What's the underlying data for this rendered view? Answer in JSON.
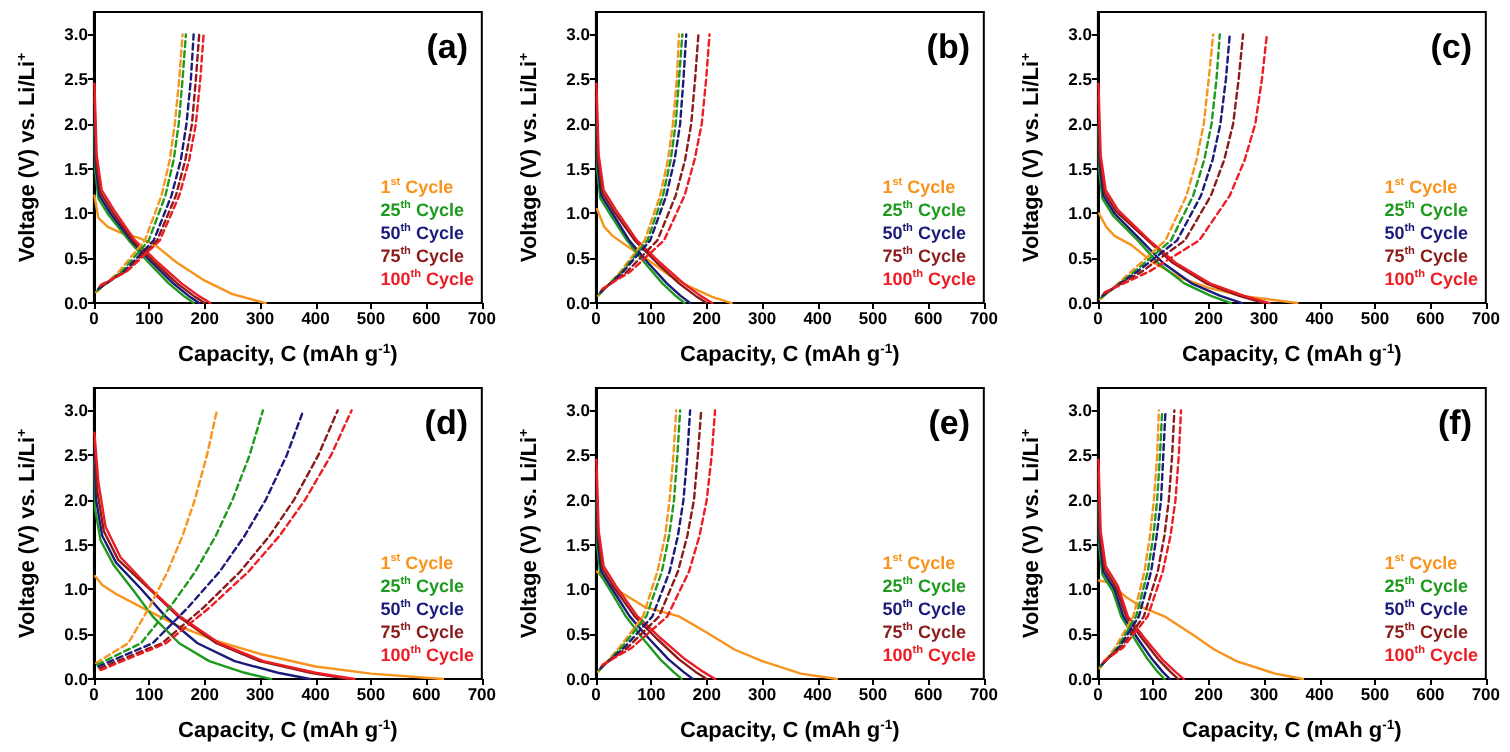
{
  "chart_data": [
    {
      "type": "line",
      "title": "(a)",
      "xlabel": "Capacity, C (mAh g$^{-1}$)",
      "ylabel": "Voltage (V) vs. Li/Li$^{+}$",
      "xlim": [
        0,
        700
      ],
      "xticks": [
        0,
        100,
        200,
        300,
        400,
        500,
        600,
        700
      ],
      "ylim": [
        0,
        3.25
      ],
      "yticks": [
        {
          "value": 0,
          "label": "0.0"
        },
        0.5,
        {
          "value": 1,
          "label": "1.0"
        },
        1.5,
        {
          "value": 2,
          "label": "2.0"
        },
        2.5,
        {
          "value": 3,
          "label": "3.0"
        }
      ],
      "legend": "bottom right",
      "marker": "none",
      "series": [
        {
          "name": "1$^{st}$ Cycle",
          "color": "#f7941d",
          "line_style": "solid",
          "x": [
            1,
            8,
            25,
            50,
            80,
            110,
            150,
            200,
            250,
            310
          ],
          "values": [
            1.2,
            0.95,
            0.85,
            0.78,
            0.73,
            0.65,
            0.45,
            0.25,
            0.1,
            0
          ]
        },
        {
          "name": "25$^{th}$ Cycle",
          "color": "#1e9a1e",
          "line_style": "solid",
          "x": [
            1,
            2,
            8,
            27,
            63,
            99,
            135,
            162,
            180
          ],
          "values": [
            2.0,
            1.5,
            1.17,
            0.98,
            0.7,
            0.45,
            0.22,
            0.08,
            0
          ]
        },
        {
          "name": "50$^{th}$ Cycle",
          "color": "#1b1b7a",
          "line_style": "solid",
          "x": [
            1,
            3,
            10,
            30,
            67,
            105,
            143,
            171,
            190
          ],
          "values": [
            2.15,
            1.55,
            1.2,
            1.0,
            0.7,
            0.45,
            0.22,
            0.08,
            0
          ]
        },
        {
          "name": "75$^{th}$ Cycle",
          "color": "#8b1c1c",
          "line_style": "solid",
          "x": [
            1,
            4,
            12,
            33,
            70,
            110,
            150,
            180,
            200
          ],
          "values": [
            2.3,
            1.6,
            1.23,
            1.02,
            0.7,
            0.45,
            0.22,
            0.08,
            0
          ]
        },
        {
          "name": "100$^{th}$ Cycle",
          "color": "#ee1c24",
          "line_style": "solid",
          "x": [
            1,
            5,
            14,
            36,
            74,
            116,
            158,
            189,
            210
          ],
          "values": [
            2.45,
            1.65,
            1.26,
            1.04,
            0.7,
            0.45,
            0.22,
            0.08,
            0
          ]
        },
        {
          "color": "#f7941d",
          "line_style": "dashed",
          "x": [
            4,
            45,
            92,
            122,
            137,
            146,
            154,
            160
          ],
          "values": [
            0.12,
            0.35,
            0.7,
            1.2,
            1.6,
            2.0,
            2.5,
            3.0
          ]
        },
        {
          "color": "#1e9a1e",
          "line_style": "dashed",
          "x": [
            6,
            50,
            99,
            129,
            144,
            153,
            160,
            166
          ],
          "values": [
            0.14,
            0.35,
            0.7,
            1.2,
            1.6,
            2.0,
            2.5,
            3.0
          ]
        },
        {
          "color": "#1b1b7a",
          "line_style": "dashed",
          "x": [
            8,
            54,
            108,
            140,
            157,
            167,
            175,
            180
          ],
          "values": [
            0.16,
            0.35,
            0.7,
            1.2,
            1.6,
            2.0,
            2.5,
            3.0
          ]
        },
        {
          "color": "#8b1c1c",
          "line_style": "dashed",
          "x": [
            10,
            57,
            114,
            148,
            165,
            177,
            184,
            190
          ],
          "values": [
            0.18,
            0.35,
            0.7,
            1.2,
            1.6,
            2.0,
            2.5,
            3.0
          ]
        },
        {
          "color": "#ee1c24",
          "line_style": "dashed",
          "x": [
            12,
            59,
            119,
            154,
            172,
            184,
            192,
            198
          ],
          "values": [
            0.2,
            0.35,
            0.7,
            1.2,
            1.6,
            2.0,
            2.5,
            3.0
          ]
        }
      ]
    },
    {
      "type": "line",
      "title": "(b)",
      "xlabel": "Capacity, C (mAh g$^{-1}$)",
      "ylabel": "Voltage (V) vs. Li/Li$^{+}$",
      "xlim": [
        0,
        700
      ],
      "xticks": [
        0,
        100,
        200,
        300,
        400,
        500,
        600,
        700
      ],
      "ylim": [
        0,
        3.25
      ],
      "yticks": [
        {
          "value": 0,
          "label": "0.0"
        },
        0.5,
        {
          "value": 1,
          "label": "1.0"
        },
        1.5,
        {
          "value": 2,
          "label": "2.0"
        },
        2.5,
        {
          "value": 3,
          "label": "3.0"
        }
      ],
      "legend": "bottom right",
      "marker": "none",
      "series": [
        {
          "name": "1$^{st}$ Cycle",
          "color": "#f7941d",
          "line_style": "solid",
          "x": [
            2,
            15,
            30,
            60,
            90,
            130,
            170,
            210,
            245
          ],
          "values": [
            1.05,
            0.85,
            0.75,
            0.62,
            0.5,
            0.32,
            0.18,
            0.07,
            0
          ]
        },
        {
          "name": "25$^{th}$ Cycle",
          "color": "#1e9a1e",
          "line_style": "solid",
          "x": [
            1,
            2,
            8,
            27,
            56,
            88,
            120,
            144,
            160
          ],
          "values": [
            2.0,
            1.5,
            1.17,
            0.98,
            0.7,
            0.45,
            0.22,
            0.08,
            0
          ]
        },
        {
          "name": "50$^{th}$ Cycle",
          "color": "#1b1b7a",
          "line_style": "solid",
          "x": [
            1,
            3,
            10,
            30,
            60,
            94,
            128,
            153,
            170
          ],
          "values": [
            2.15,
            1.55,
            1.2,
            1.0,
            0.7,
            0.45,
            0.22,
            0.08,
            0
          ]
        },
        {
          "name": "75$^{th}$ Cycle",
          "color": "#8b1c1c",
          "line_style": "solid",
          "x": [
            1,
            4,
            12,
            33,
            70,
            110,
            150,
            180,
            200
          ],
          "values": [
            2.3,
            1.6,
            1.23,
            1.02,
            0.7,
            0.45,
            0.22,
            0.08,
            0
          ]
        },
        {
          "name": "100$^{th}$ Cycle",
          "color": "#ee1c24",
          "line_style": "solid",
          "x": [
            1,
            5,
            14,
            36,
            74,
            116,
            158,
            189,
            210
          ],
          "values": [
            2.45,
            1.65,
            1.26,
            1.04,
            0.7,
            0.45,
            0.22,
            0.08,
            0
          ]
        },
        {
          "color": "#f7941d",
          "line_style": "dashed",
          "x": [
            4,
            44,
            88,
            116,
            130,
            139,
            146,
            150
          ],
          "values": [
            0.08,
            0.35,
            0.7,
            1.2,
            1.6,
            2.0,
            2.5,
            3.0
          ]
        },
        {
          "color": "#1e9a1e",
          "line_style": "dashed",
          "x": [
            6,
            47,
            93,
            121,
            135,
            144,
            150,
            156
          ],
          "values": [
            0.1,
            0.35,
            0.7,
            1.2,
            1.6,
            2.0,
            2.5,
            3.0
          ]
        },
        {
          "color": "#1b1b7a",
          "line_style": "dashed",
          "x": [
            8,
            49,
            98,
            127,
            142,
            152,
            158,
            163
          ],
          "values": [
            0.12,
            0.35,
            0.7,
            1.2,
            1.6,
            2.0,
            2.5,
            3.0
          ]
        },
        {
          "color": "#8b1c1c",
          "line_style": "dashed",
          "x": [
            10,
            56,
            111,
            144,
            161,
            172,
            179,
            185
          ],
          "values": [
            0.14,
            0.35,
            0.7,
            1.2,
            1.6,
            2.0,
            2.5,
            3.0
          ]
        },
        {
          "color": "#ee1c24",
          "line_style": "dashed",
          "x": [
            12,
            62,
            123,
            160,
            178,
            191,
            199,
            205
          ],
          "values": [
            0.16,
            0.35,
            0.7,
            1.2,
            1.6,
            2.0,
            2.5,
            3.0
          ]
        }
      ]
    },
    {
      "type": "line",
      "title": "(c)",
      "xlabel": "Capacity, C (mAh g$^{-1}$)",
      "ylabel": "Voltage (V) vs. Li/Li$^{+}$",
      "xlim": [
        0,
        700
      ],
      "xticks": [
        0,
        100,
        200,
        300,
        400,
        500,
        600,
        700
      ],
      "ylim": [
        0,
        3.25
      ],
      "yticks": [
        {
          "value": 0,
          "label": "0.0"
        },
        0.5,
        {
          "value": 1,
          "label": "1.0"
        },
        1.5,
        {
          "value": 2,
          "label": "2.0"
        },
        2.5,
        {
          "value": 3,
          "label": "3.0"
        }
      ],
      "legend": "bottom right",
      "marker": "none",
      "series": [
        {
          "name": "1$^{st}$ Cycle",
          "color": "#f7941d",
          "line_style": "solid",
          "x": [
            2,
            15,
            30,
            60,
            100,
            150,
            200,
            260,
            360
          ],
          "values": [
            1.0,
            0.85,
            0.75,
            0.65,
            0.45,
            0.28,
            0.17,
            0.08,
            0
          ]
        },
        {
          "name": "25$^{th}$ Cycle",
          "color": "#1e9a1e",
          "line_style": "solid",
          "x": [
            1,
            2,
            8,
            27,
            72,
            108,
            156,
            204,
            240
          ],
          "values": [
            2.0,
            1.5,
            1.17,
            0.98,
            0.7,
            0.45,
            0.22,
            0.08,
            0
          ]
        },
        {
          "name": "50$^{th}$ Cycle",
          "color": "#1b1b7a",
          "line_style": "solid",
          "x": [
            1,
            3,
            10,
            30,
            78,
            117,
            169,
            221,
            260
          ],
          "values": [
            2.15,
            1.55,
            1.2,
            1.0,
            0.7,
            0.45,
            0.22,
            0.08,
            0
          ]
        },
        {
          "name": "75$^{th}$ Cycle",
          "color": "#8b1c1c",
          "line_style": "solid",
          "x": [
            1,
            4,
            12,
            33,
            90,
            135,
            195,
            255,
            300
          ],
          "values": [
            2.3,
            1.6,
            1.23,
            1.02,
            0.7,
            0.45,
            0.22,
            0.08,
            0
          ]
        },
        {
          "name": "100$^{th}$ Cycle",
          "color": "#ee1c24",
          "line_style": "solid",
          "x": [
            1,
            5,
            14,
            36,
            93,
            140,
            202,
            264,
            310
          ],
          "values": [
            2.45,
            1.65,
            1.26,
            1.04,
            0.7,
            0.45,
            0.22,
            0.08,
            0
          ]
        },
        {
          "color": "#f7941d",
          "line_style": "dashed",
          "x": [
            4,
            60,
            122,
            160,
            178,
            191,
            200,
            208
          ],
          "values": [
            0.04,
            0.35,
            0.7,
            1.2,
            1.6,
            2.0,
            2.5,
            3.0
          ]
        },
        {
          "color": "#1e9a1e",
          "line_style": "dashed",
          "x": [
            6,
            66,
            132,
            172,
            192,
            205,
            214,
            220
          ],
          "values": [
            0.06,
            0.35,
            0.7,
            1.2,
            1.6,
            2.0,
            2.5,
            3.0
          ]
        },
        {
          "color": "#1b1b7a",
          "line_style": "dashed",
          "x": [
            8,
            71,
            143,
            186,
            207,
            221,
            231,
            238
          ],
          "values": [
            0.08,
            0.35,
            0.7,
            1.2,
            1.6,
            2.0,
            2.5,
            3.0
          ]
        },
        {
          "color": "#8b1c1c",
          "line_style": "dashed",
          "x": [
            10,
            79,
            157,
            204,
            228,
            244,
            254,
            262
          ],
          "values": [
            0.1,
            0.35,
            0.7,
            1.2,
            1.6,
            2.0,
            2.5,
            3.0
          ]
        },
        {
          "color": "#ee1c24",
          "line_style": "dashed",
          "x": [
            12,
            92,
            183,
            238,
            265,
            284,
            296,
            305
          ],
          "values": [
            0.12,
            0.35,
            0.7,
            1.2,
            1.6,
            2.0,
            2.5,
            3.0
          ]
        }
      ]
    },
    {
      "type": "line",
      "title": "(d)",
      "xlabel": "Capacity, C (mAh g$^{-1}$)",
      "ylabel": "Voltage (V) vs. Li/Li$^{+}$",
      "xlim": [
        0,
        700
      ],
      "xticks": [
        0,
        100,
        200,
        300,
        400,
        500,
        600,
        700
      ],
      "ylim": [
        0,
        3.25
      ],
      "yticks": [
        {
          "value": 0,
          "label": "0.0"
        },
        0.5,
        {
          "value": 1,
          "label": "1.0"
        },
        1.5,
        {
          "value": 2,
          "label": "2.0"
        },
        2.5,
        {
          "value": 3,
          "label": "3.0"
        }
      ],
      "legend": "bottom right",
      "marker": "none",
      "series": [
        {
          "name": "1$^{st}$ Cycle",
          "color": "#f7941d",
          "line_style": "solid",
          "x": [
            2,
            15,
            40,
            80,
            150,
            220,
            300,
            400,
            500,
            630
          ],
          "values": [
            1.15,
            1.05,
            0.95,
            0.82,
            0.6,
            0.43,
            0.28,
            0.14,
            0.06,
            0
          ]
        },
        {
          "name": "25$^{th}$ Cycle",
          "color": "#1e9a1e",
          "line_style": "solid",
          "x": [
            1,
            2,
            12,
            36,
            70,
            106,
            154,
            208,
            272,
            320
          ],
          "values": [
            2.45,
            1.9,
            1.55,
            1.27,
            1.0,
            0.7,
            0.4,
            0.2,
            0.07,
            0
          ]
        },
        {
          "name": "50$^{th}$ Cycle",
          "color": "#1b1b7a",
          "line_style": "solid",
          "x": [
            1,
            4,
            15,
            40,
            86,
            129,
            187,
            254,
            332,
            390
          ],
          "values": [
            2.55,
            2.0,
            1.6,
            1.3,
            1.0,
            0.7,
            0.4,
            0.2,
            0.07,
            0
          ]
        },
        {
          "name": "75$^{th}$ Cycle",
          "color": "#8b1c1c",
          "line_style": "solid",
          "x": [
            1,
            6,
            18,
            44,
            101,
            152,
            221,
            299,
            391,
            460
          ],
          "values": [
            2.65,
            2.1,
            1.65,
            1.33,
            1.0,
            0.7,
            0.4,
            0.2,
            0.07,
            0
          ]
        },
        {
          "name": "100$^{th}$ Cycle",
          "color": "#ee1c24",
          "line_style": "solid",
          "x": [
            1,
            8,
            21,
            48,
            103,
            155,
            226,
            306,
            400,
            470
          ],
          "values": [
            2.75,
            2.2,
            1.7,
            1.36,
            1.0,
            0.7,
            0.4,
            0.2,
            0.07,
            0
          ]
        },
        {
          "color": "#f7941d",
          "line_style": "dashed",
          "x": [
            4,
            62,
            100,
            133,
            160,
            182,
            204,
            222
          ],
          "values": [
            0.18,
            0.4,
            0.8,
            1.2,
            1.6,
            2.0,
            2.5,
            3.0
          ]
        },
        {
          "color": "#1e9a1e",
          "line_style": "dashed",
          "x": [
            6,
            85,
            137,
            183,
            220,
            250,
            281,
            305
          ],
          "values": [
            0.16,
            0.4,
            0.8,
            1.2,
            1.6,
            2.0,
            2.5,
            3.0
          ]
        },
        {
          "color": "#1b1b7a",
          "line_style": "dashed",
          "x": [
            8,
            106,
            170,
            227,
            272,
            310,
            348,
            378
          ],
          "values": [
            0.14,
            0.4,
            0.8,
            1.2,
            1.6,
            2.0,
            2.5,
            3.0
          ]
        },
        {
          "color": "#8b1c1c",
          "line_style": "dashed",
          "x": [
            10,
            123,
            198,
            264,
            317,
            361,
            405,
            440
          ],
          "values": [
            0.12,
            0.4,
            0.8,
            1.2,
            1.6,
            2.0,
            2.5,
            3.0
          ]
        },
        {
          "color": "#ee1c24",
          "line_style": "dashed",
          "x": [
            12,
            130,
            209,
            279,
            335,
            381,
            428,
            465
          ],
          "values": [
            0.1,
            0.4,
            0.8,
            1.2,
            1.6,
            2.0,
            2.5,
            3.0
          ]
        }
      ]
    },
    {
      "type": "line",
      "title": "(e)",
      "xlabel": "Capacity, C (mAh g$^{-1}$)",
      "ylabel": "Voltage (V) vs. Li/Li$^{+}$",
      "xlim": [
        0,
        700
      ],
      "xticks": [
        0,
        100,
        200,
        300,
        400,
        500,
        600,
        700
      ],
      "ylim": [
        0,
        3.25
      ],
      "yticks": [
        {
          "value": 0,
          "label": "0.0"
        },
        0.5,
        {
          "value": 1,
          "label": "1.0"
        },
        1.5,
        {
          "value": 2,
          "label": "2.0"
        },
        2.5,
        {
          "value": 3,
          "label": "3.0"
        }
      ],
      "legend": "bottom right",
      "marker": "none",
      "series": [
        {
          "name": "1$^{st}$ Cycle",
          "color": "#f7941d",
          "line_style": "solid",
          "x": [
            2,
            20,
            50,
            90,
            150,
            200,
            250,
            300,
            370,
            435
          ],
          "values": [
            1.2,
            1.07,
            0.95,
            0.8,
            0.7,
            0.52,
            0.33,
            0.2,
            0.06,
            0
          ]
        },
        {
          "name": "25$^{th}$ Cycle",
          "color": "#1e9a1e",
          "line_style": "solid",
          "x": [
            1,
            2,
            8,
            27,
            54,
            85,
            116,
            140,
            155
          ],
          "values": [
            2.0,
            1.5,
            1.17,
            0.98,
            0.7,
            0.45,
            0.22,
            0.08,
            0
          ]
        },
        {
          "name": "50$^{th}$ Cycle",
          "color": "#1b1b7a",
          "line_style": "solid",
          "x": [
            1,
            3,
            10,
            30,
            61,
            96,
            131,
            158,
            175
          ],
          "values": [
            2.15,
            1.55,
            1.2,
            1.0,
            0.7,
            0.45,
            0.22,
            0.08,
            0
          ]
        },
        {
          "name": "75$^{th}$ Cycle",
          "color": "#8b1c1c",
          "line_style": "solid",
          "x": [
            1,
            4,
            12,
            33,
            70,
            110,
            150,
            180,
            200
          ],
          "values": [
            2.3,
            1.6,
            1.23,
            1.02,
            0.7,
            0.45,
            0.22,
            0.08,
            0
          ]
        },
        {
          "name": "100$^{th}$ Cycle",
          "color": "#ee1c24",
          "line_style": "solid",
          "x": [
            1,
            5,
            14,
            36,
            75,
            118,
            161,
            194,
            215
          ],
          "values": [
            2.45,
            1.65,
            1.26,
            1.04,
            0.7,
            0.45,
            0.22,
            0.08,
            0
          ]
        },
        {
          "color": "#f7941d",
          "line_style": "dashed",
          "x": [
            4,
            42,
            85,
            111,
            125,
            133,
            140,
            145
          ],
          "values": [
            0.08,
            0.35,
            0.7,
            1.2,
            1.6,
            2.0,
            2.5,
            3.0
          ]
        },
        {
          "color": "#1e9a1e",
          "line_style": "dashed",
          "x": [
            6,
            46,
            91,
            119,
            132,
            141,
            147,
            152
          ],
          "values": [
            0.1,
            0.35,
            0.7,
            1.2,
            1.6,
            2.0,
            2.5,
            3.0
          ]
        },
        {
          "color": "#1b1b7a",
          "line_style": "dashed",
          "x": [
            8,
            51,
            102,
            133,
            148,
            158,
            165,
            170
          ],
          "values": [
            0.12,
            0.35,
            0.7,
            1.2,
            1.6,
            2.0,
            2.5,
            3.0
          ]
        },
        {
          "color": "#8b1c1c",
          "line_style": "dashed",
          "x": [
            10,
            57,
            114,
            148,
            165,
            177,
            184,
            190
          ],
          "values": [
            0.14,
            0.35,
            0.7,
            1.2,
            1.6,
            2.0,
            2.5,
            3.0
          ]
        },
        {
          "color": "#ee1c24",
          "line_style": "dashed",
          "x": [
            12,
            65,
            129,
            168,
            187,
            200,
            209,
            215
          ],
          "values": [
            0.16,
            0.35,
            0.7,
            1.2,
            1.6,
            2.0,
            2.5,
            3.0
          ]
        }
      ]
    },
    {
      "type": "line",
      "title": "(f)",
      "xlabel": "Capacity, C (mAh g$^{-1}$)",
      "ylabel": "Voltage (V) vs. Li/Li$^{+}$",
      "xlim": [
        0,
        700
      ],
      "xticks": [
        0,
        100,
        200,
        300,
        400,
        500,
        600,
        700
      ],
      "ylim": [
        0,
        3.25
      ],
      "yticks": [
        {
          "value": 0,
          "label": "0.0"
        },
        0.5,
        {
          "value": 1,
          "label": "1.0"
        },
        1.5,
        {
          "value": 2,
          "label": "2.0"
        },
        2.5,
        {
          "value": 3,
          "label": "3.0"
        }
      ],
      "legend": "bottom right",
      "marker": "none",
      "series": [
        {
          "name": "1$^{st}$ Cycle",
          "color": "#f7941d",
          "line_style": "solid",
          "x": [
            2,
            20,
            50,
            80,
            120,
            170,
            210,
            250,
            320,
            370
          ],
          "values": [
            1.1,
            1.08,
            0.92,
            0.8,
            0.7,
            0.5,
            0.33,
            0.2,
            0.06,
            0
          ]
        },
        {
          "name": "25$^{th}$ Cycle",
          "color": "#1e9a1e",
          "line_style": "solid",
          "x": [
            1,
            2,
            8,
            27,
            42,
            66,
            90,
            108,
            120
          ],
          "values": [
            2.0,
            1.5,
            1.17,
            0.98,
            0.7,
            0.45,
            0.22,
            0.08,
            0
          ]
        },
        {
          "name": "50$^{th}$ Cycle",
          "color": "#1b1b7a",
          "line_style": "solid",
          "x": [
            1,
            3,
            10,
            30,
            46,
            72,
            98,
            117,
            130
          ],
          "values": [
            2.15,
            1.55,
            1.2,
            1.0,
            0.7,
            0.45,
            0.22,
            0.08,
            0
          ]
        },
        {
          "name": "75$^{th}$ Cycle",
          "color": "#8b1c1c",
          "line_style": "solid",
          "x": [
            1,
            4,
            12,
            33,
            51,
            80,
            109,
            131,
            145
          ],
          "values": [
            2.3,
            1.6,
            1.23,
            1.02,
            0.7,
            0.45,
            0.22,
            0.08,
            0
          ]
        },
        {
          "name": "100$^{th}$ Cycle",
          "color": "#ee1c24",
          "line_style": "solid",
          "x": [
            1,
            5,
            14,
            36,
            54,
            85,
            116,
            140,
            155
          ],
          "values": [
            2.45,
            1.65,
            1.26,
            1.04,
            0.7,
            0.45,
            0.22,
            0.08,
            0
          ]
        },
        {
          "color": "#f7941d",
          "line_style": "dashed",
          "x": [
            3,
            31,
            64,
            84,
            94,
            101,
            107,
            110
          ],
          "values": [
            0.12,
            0.35,
            0.7,
            1.2,
            1.6,
            2.0,
            2.5,
            3.0
          ]
        },
        {
          "color": "#1e9a1e",
          "line_style": "dashed",
          "x": [
            5,
            35,
            69,
            90,
            100,
            107,
            112,
            116
          ],
          "values": [
            0.14,
            0.35,
            0.7,
            1.2,
            1.6,
            2.0,
            2.5,
            3.0
          ]
        },
        {
          "color": "#1b1b7a",
          "line_style": "dashed",
          "x": [
            7,
            38,
            74,
            96,
            106,
            114,
            118,
            122
          ],
          "values": [
            0.16,
            0.35,
            0.7,
            1.2,
            1.6,
            2.0,
            2.5,
            3.0
          ]
        },
        {
          "color": "#8b1c1c",
          "line_style": "dashed",
          "x": [
            9,
            41,
            83,
            108,
            120,
            128,
            134,
            138
          ],
          "values": [
            0.18,
            0.35,
            0.7,
            1.2,
            1.6,
            2.0,
            2.5,
            3.0
          ]
        },
        {
          "color": "#ee1c24",
          "line_style": "dashed",
          "x": [
            11,
            45,
            90,
            117,
            131,
            140,
            146,
            150
          ],
          "values": [
            0.2,
            0.35,
            0.7,
            1.2,
            1.6,
            2.0,
            2.5,
            3.0
          ]
        }
      ]
    }
  ]
}
